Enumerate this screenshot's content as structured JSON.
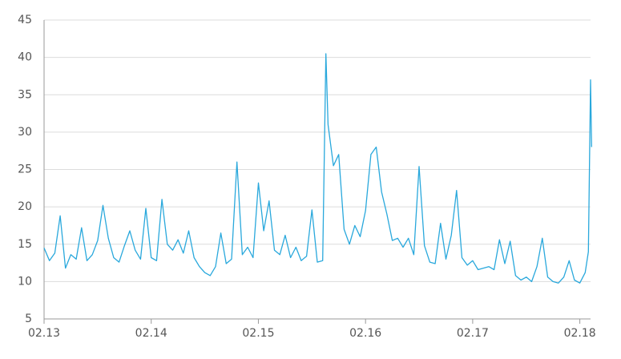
{
  "chart_data": {
    "type": "line",
    "x": [
      13.0,
      13.05,
      13.1,
      13.15,
      13.2,
      13.25,
      13.3,
      13.35,
      13.4,
      13.45,
      13.5,
      13.55,
      13.6,
      13.65,
      13.7,
      13.75,
      13.8,
      13.85,
      13.9,
      13.95,
      14.0,
      14.05,
      14.1,
      14.15,
      14.2,
      14.25,
      14.3,
      14.35,
      14.4,
      14.45,
      14.5,
      14.55,
      14.6,
      14.65,
      14.7,
      14.75,
      14.8,
      14.85,
      14.9,
      14.95,
      15.0,
      15.05,
      15.1,
      15.15,
      15.2,
      15.25,
      15.3,
      15.35,
      15.4,
      15.45,
      15.5,
      15.55,
      15.6,
      15.63,
      15.65,
      15.7,
      15.75,
      15.8,
      15.85,
      15.9,
      15.95,
      16.0,
      16.05,
      16.1,
      16.15,
      16.2,
      16.25,
      16.3,
      16.35,
      16.4,
      16.45,
      16.5,
      16.55,
      16.6,
      16.65,
      16.7,
      16.75,
      16.8,
      16.85,
      16.9,
      16.95,
      17.0,
      17.05,
      17.1,
      17.15,
      17.2,
      17.25,
      17.3,
      17.35,
      17.4,
      17.45,
      17.5,
      17.55,
      17.6,
      17.65,
      17.7,
      17.75,
      17.8,
      17.85,
      17.9,
      17.95,
      18.0,
      18.05,
      18.08,
      18.1,
      18.11
    ],
    "series": [
      {
        "color": "#29a8dc",
        "values": [
          14.5,
          12.8,
          13.8,
          18.8,
          11.8,
          13.6,
          13.0,
          17.2,
          12.8,
          13.6,
          15.5,
          20.2,
          15.8,
          13.2,
          12.6,
          14.8,
          16.8,
          14.2,
          13.0,
          19.8,
          13.2,
          12.8,
          21.0,
          15.0,
          14.2,
          15.6,
          13.8,
          16.8,
          13.2,
          12.0,
          11.2,
          10.8,
          12.0,
          16.5,
          12.4,
          13.0,
          26.0,
          13.6,
          14.6,
          13.2,
          23.2,
          16.8,
          20.8,
          14.2,
          13.6,
          16.2,
          13.2,
          14.6,
          12.8,
          13.4,
          19.6,
          12.6,
          12.8,
          40.5,
          31.0,
          25.5,
          27.0,
          17.0,
          15.0,
          17.5,
          16.0,
          19.5,
          27.0,
          28.0,
          22.0,
          19.0,
          15.5,
          15.8,
          14.6,
          15.8,
          13.6,
          25.4,
          14.8,
          12.6,
          12.4,
          17.8,
          13.0,
          16.2,
          22.2,
          13.2,
          12.2,
          12.8,
          11.6,
          11.8,
          12.0,
          11.6,
          15.6,
          12.4,
          15.4,
          10.8,
          10.2,
          10.6,
          10.0,
          12.0,
          15.8,
          10.6,
          10.0,
          9.8,
          10.6,
          12.8,
          10.2,
          9.8,
          11.2,
          14.0,
          37.0,
          28.0
        ]
      }
    ],
    "xlim": [
      13,
      18.1
    ],
    "xticks": [
      {
        "value": 13,
        "label": "02.13"
      },
      {
        "value": 14,
        "label": "02.14"
      },
      {
        "value": 15,
        "label": "02.15"
      },
      {
        "value": 16,
        "label": "02.16"
      },
      {
        "value": 17,
        "label": "02.17"
      },
      {
        "value": 18,
        "label": "02.18"
      }
    ],
    "ylim": [
      5,
      45
    ],
    "yticks": [
      5,
      10,
      15,
      20,
      25,
      30,
      35,
      40,
      45
    ],
    "grid": true
  }
}
